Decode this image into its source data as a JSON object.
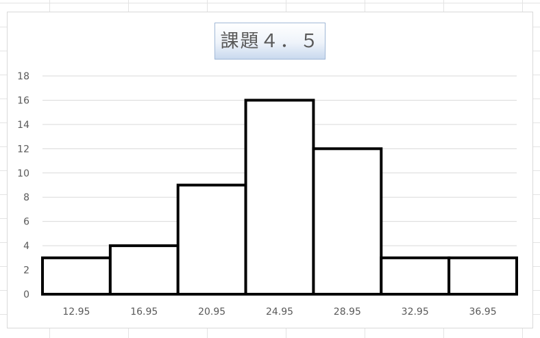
{
  "chart_data": {
    "type": "bar",
    "title": "課題４．５",
    "xlabel": "",
    "ylabel": "",
    "categories": [
      "12.95",
      "16.95",
      "20.95",
      "24.95",
      "28.95",
      "32.95",
      "36.95"
    ],
    "values": [
      3,
      4,
      9,
      16,
      12,
      3,
      3
    ],
    "ylim": [
      0,
      18
    ],
    "yticks": [
      "0",
      "2",
      "4",
      "6",
      "8",
      "10",
      "12",
      "14",
      "16",
      "18"
    ],
    "grid": true,
    "legend": "none",
    "bar_fill": "#ffffff",
    "bar_stroke": "#000000",
    "gridline_color": "#d9d9d9"
  }
}
